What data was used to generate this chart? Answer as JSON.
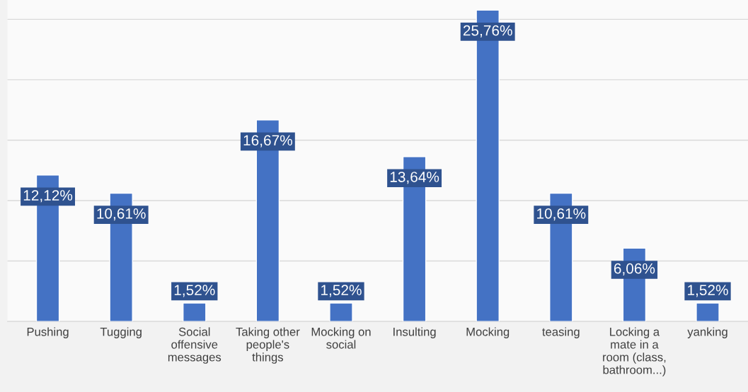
{
  "chart_data": {
    "type": "bar",
    "categories": [
      "Pushing",
      "Tugging",
      "Social\noffensive\nmessages",
      "Taking other\npeople's\nthings",
      "Mocking on\nsocial",
      "Insulting",
      "Mocking",
      "teasing",
      "Locking a\nmate in a\nroom (class,\nbathroom...)",
      "yanking"
    ],
    "values": [
      12.12,
      10.61,
      1.52,
      16.67,
      1.52,
      13.64,
      25.76,
      10.61,
      6.06,
      1.52
    ],
    "value_labels": [
      "12,12%",
      "10,61%",
      "1,52%",
      "16,67%",
      "1,52%",
      "13,64%",
      "25,76%",
      "10,61%",
      "6,06%",
      "1,52%"
    ],
    "color": "#4472c4",
    "ylim": [
      0,
      26.6
    ],
    "yticks": [
      {
        "value": 0,
        "label": null
      },
      {
        "value": 5,
        "label": null
      },
      {
        "value": 10,
        "label": null
      },
      {
        "value": 15,
        "label": null
      },
      {
        "value": 20,
        "label": null
      },
      {
        "value": 25,
        "label": null
      }
    ],
    "grid": "y",
    "tick_labels": "x"
  }
}
